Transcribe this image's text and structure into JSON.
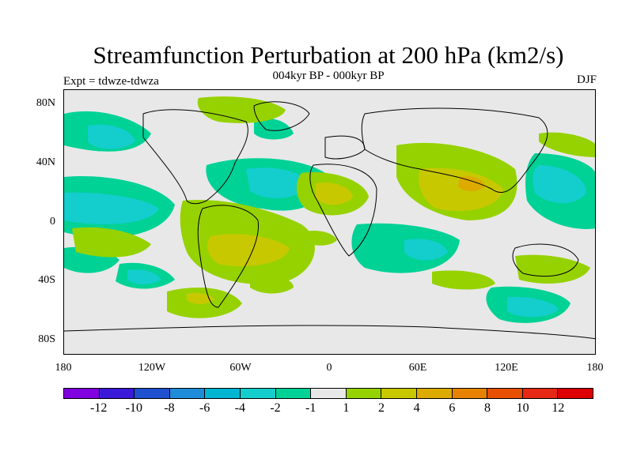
{
  "title": "Streamfunction Perturbation at 200 hPa (km2/s)",
  "subtitle": "004kyr BP - 000kyr BP",
  "experiment": "Expt = tdwze-tdwza",
  "season": "DJF",
  "lat_labels": [
    "80N",
    "40N",
    "0",
    "40S",
    "80S"
  ],
  "lon_labels": [
    "180",
    "120W",
    "60W",
    "0",
    "60E",
    "120E",
    "180"
  ],
  "colorbar": {
    "colors": [
      "#8000e0",
      "#3a1ad8",
      "#1e50d0",
      "#1e8cd8",
      "#00b4d2",
      "#14cdcd",
      "#00d296",
      "#e8e8e8",
      "#96d200",
      "#c8c800",
      "#dcaa00",
      "#e68200",
      "#e65000",
      "#e62814",
      "#dc0000"
    ],
    "labels": [
      "-12",
      "-10",
      "-8",
      "-6",
      "-4",
      "-2",
      "-1",
      "1",
      "2",
      "4",
      "6",
      "8",
      "10",
      "12"
    ]
  }
}
